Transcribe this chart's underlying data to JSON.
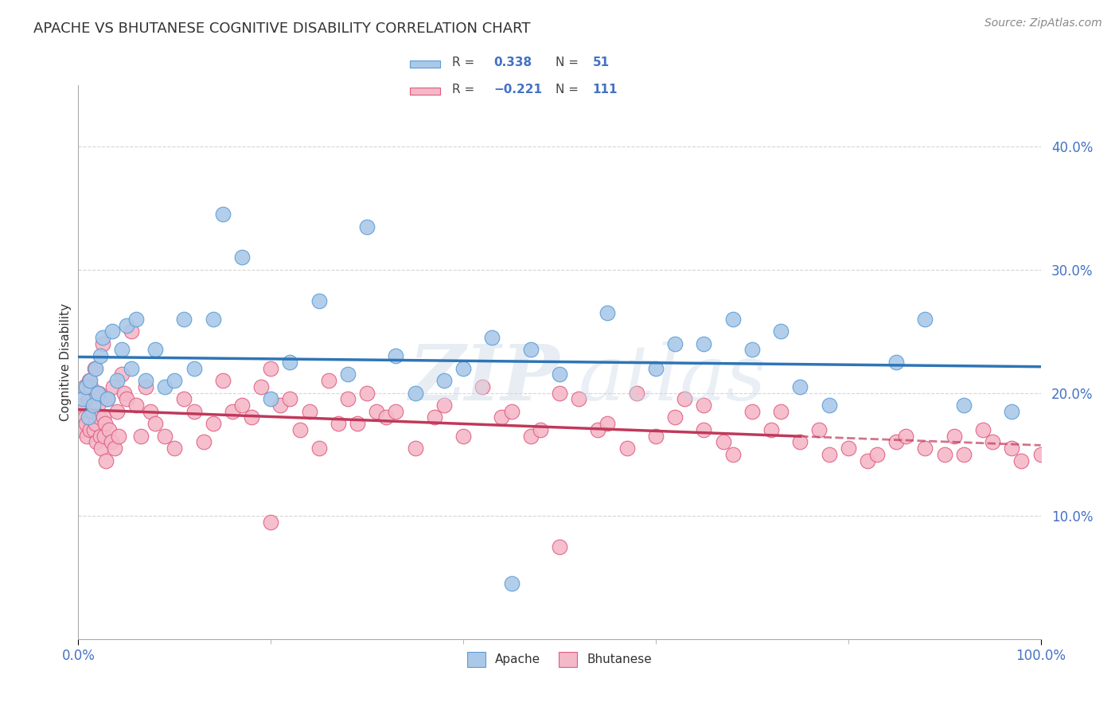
{
  "title": "APACHE VS BHUTANESE COGNITIVE DISABILITY CORRELATION CHART",
  "source": "Source: ZipAtlas.com",
  "ylabel": "Cognitive Disability",
  "watermark": "ZIPatlas",
  "apache": {
    "R": 0.338,
    "N": 51,
    "color": "#aac9e8",
    "edge_color": "#5b9bd5",
    "line_color": "#2e75b6",
    "label": "Apache",
    "x": [
      0.5,
      0.8,
      1.0,
      1.2,
      1.5,
      1.8,
      2.0,
      2.3,
      2.5,
      3.0,
      3.5,
      4.0,
      4.5,
      5.0,
      5.5,
      6.0,
      7.0,
      8.0,
      9.0,
      10.0,
      11.0,
      12.0,
      14.0,
      15.0,
      17.0,
      20.0,
      22.0,
      25.0,
      28.0,
      30.0,
      33.0,
      35.0,
      38.0,
      40.0,
      43.0,
      45.0,
      47.0,
      50.0,
      55.0,
      60.0,
      62.0,
      65.0,
      68.0,
      70.0,
      73.0,
      75.0,
      78.0,
      85.0,
      88.0,
      92.0,
      97.0
    ],
    "y": [
      19.5,
      20.5,
      18.0,
      21.0,
      19.0,
      22.0,
      20.0,
      23.0,
      24.5,
      19.5,
      25.0,
      21.0,
      23.5,
      25.5,
      22.0,
      26.0,
      21.0,
      23.5,
      20.5,
      21.0,
      26.0,
      22.0,
      26.0,
      34.5,
      31.0,
      19.5,
      22.5,
      27.5,
      21.5,
      33.5,
      23.0,
      20.0,
      21.0,
      22.0,
      24.5,
      4.5,
      23.5,
      21.5,
      26.5,
      22.0,
      24.0,
      24.0,
      26.0,
      23.5,
      25.0,
      20.5,
      19.0,
      22.5,
      26.0,
      19.0,
      18.5
    ]
  },
  "bhutanese": {
    "R": -0.221,
    "N": 111,
    "color": "#f4b8c8",
    "edge_color": "#e05c80",
    "line_color": "#c0395a",
    "label": "Bhutanese",
    "x": [
      0.3,
      0.5,
      0.6,
      0.7,
      0.8,
      0.9,
      1.0,
      1.1,
      1.2,
      1.3,
      1.4,
      1.5,
      1.6,
      1.7,
      1.8,
      1.9,
      2.0,
      2.1,
      2.2,
      2.3,
      2.4,
      2.5,
      2.6,
      2.7,
      2.8,
      2.9,
      3.0,
      3.2,
      3.4,
      3.6,
      3.8,
      4.0,
      4.2,
      4.5,
      4.8,
      5.0,
      5.5,
      6.0,
      6.5,
      7.0,
      7.5,
      8.0,
      9.0,
      10.0,
      11.0,
      12.0,
      13.0,
      14.0,
      15.0,
      16.0,
      17.0,
      18.0,
      19.0,
      20.0,
      21.0,
      22.0,
      23.0,
      24.0,
      25.0,
      26.0,
      27.0,
      28.0,
      29.0,
      30.0,
      31.0,
      32.0,
      33.0,
      35.0,
      37.0,
      38.0,
      40.0,
      42.0,
      44.0,
      45.0,
      47.0,
      48.0,
      50.0,
      52.0,
      54.0,
      55.0,
      57.0,
      58.0,
      60.0,
      62.0,
      63.0,
      65.0,
      67.0,
      68.0,
      70.0,
      72.0,
      73.0,
      75.0,
      77.0,
      78.0,
      80.0,
      82.0,
      83.0,
      85.0,
      86.0,
      88.0,
      90.0,
      91.0,
      92.0,
      94.0,
      95.0,
      97.0,
      98.0,
      100.0,
      65.0,
      50.0,
      20.0
    ],
    "y": [
      17.0,
      19.0,
      20.5,
      18.0,
      17.5,
      16.5,
      19.5,
      21.0,
      17.0,
      20.5,
      18.5,
      18.5,
      17.0,
      22.0,
      17.5,
      16.0,
      19.0,
      20.0,
      18.0,
      16.5,
      15.5,
      24.0,
      18.0,
      16.5,
      17.5,
      14.5,
      19.5,
      17.0,
      16.0,
      20.5,
      15.5,
      18.5,
      16.5,
      21.5,
      20.0,
      19.5,
      25.0,
      19.0,
      16.5,
      20.5,
      18.5,
      17.5,
      16.5,
      15.5,
      19.5,
      18.5,
      16.0,
      17.5,
      21.0,
      18.5,
      19.0,
      18.0,
      20.5,
      22.0,
      19.0,
      19.5,
      17.0,
      18.5,
      15.5,
      21.0,
      17.5,
      19.5,
      17.5,
      20.0,
      18.5,
      18.0,
      18.5,
      15.5,
      18.0,
      19.0,
      16.5,
      20.5,
      18.0,
      18.5,
      16.5,
      17.0,
      20.0,
      19.5,
      17.0,
      17.5,
      15.5,
      20.0,
      16.5,
      18.0,
      19.5,
      17.0,
      16.0,
      15.0,
      18.5,
      17.0,
      18.5,
      16.0,
      17.0,
      15.0,
      15.5,
      14.5,
      15.0,
      16.0,
      16.5,
      15.5,
      15.0,
      16.5,
      15.0,
      17.0,
      16.0,
      15.5,
      14.5,
      15.0,
      19.0,
      7.5,
      9.5
    ]
  },
  "xlim": [
    0.0,
    100.0
  ],
  "ylim": [
    0.0,
    45.0
  ],
  "ytick_vals": [
    10.0,
    20.0,
    30.0,
    40.0
  ],
  "ytick_labels": [
    "10.0%",
    "20.0%",
    "30.0%",
    "40.0%"
  ],
  "xtick_vals": [
    0.0,
    100.0
  ],
  "xtick_labels": [
    "0.0%",
    "100.0%"
  ],
  "grid_color": "#cccccc",
  "background_color": "#ffffff",
  "title_fontsize": 13,
  "axis_color": "#4472c4",
  "text_color": "#333333",
  "legend_box_color": "#f0f0f0"
}
